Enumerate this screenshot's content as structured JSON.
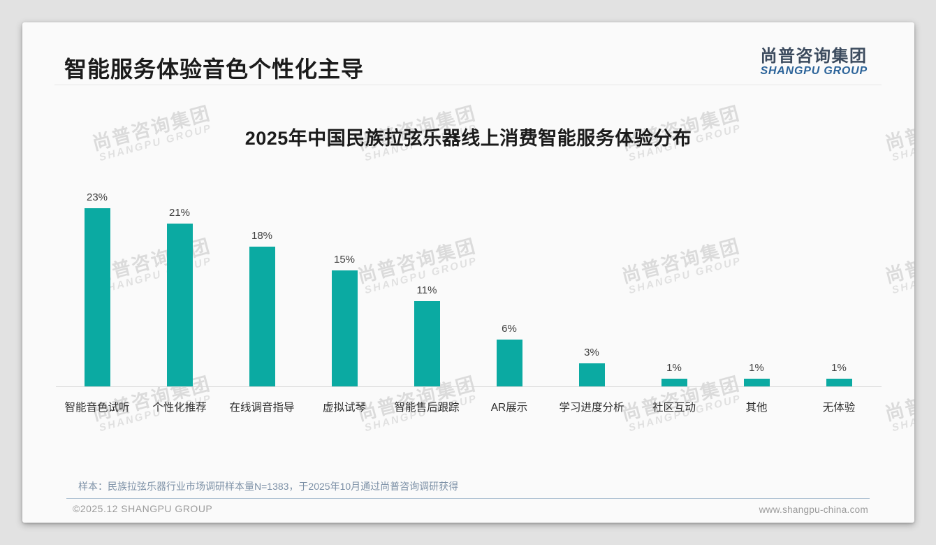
{
  "page": {
    "title": "智能服务体验音色个性化主导",
    "logo": {
      "cn": "尚普咨询集团",
      "en": "SHANGPU GROUP"
    },
    "watermark": {
      "cn": "尚普咨询集团",
      "en": "SHANGPU GROUP"
    },
    "sample_note": "样本：民族拉弦乐器行业市场调研样本量N=1383，于2025年10月通过尚普咨询调研获得",
    "footer": {
      "left": "©2025.12 SHANGPU GROUP",
      "right": "www.shangpu-china.com"
    }
  },
  "colors": {
    "bar": "#0BAAA2",
    "logo_cn": "#3C4B5E",
    "logo_en": "#2B6399",
    "note_text": "#7C90A6",
    "axis_line": "#D8D8D8"
  },
  "chart_data": {
    "type": "bar",
    "title": "2025年中国民族拉弦乐器线上消费智能服务体验分布",
    "categories": [
      "智能音色试听",
      "个性化推荐",
      "在线调音指导",
      "虚拟试琴",
      "智能售后跟踪",
      "AR展示",
      "学习进度分析",
      "社区互动",
      "其他",
      "无体验"
    ],
    "values": [
      23,
      21,
      18,
      15,
      11,
      6,
      3,
      1,
      1,
      1
    ],
    "value_suffix": "%",
    "xlabel": "",
    "ylabel": "",
    "ylim": [
      0,
      25
    ],
    "grid": false,
    "legend": "none",
    "value_labels": true,
    "bar_color": "#0BAAA2"
  }
}
